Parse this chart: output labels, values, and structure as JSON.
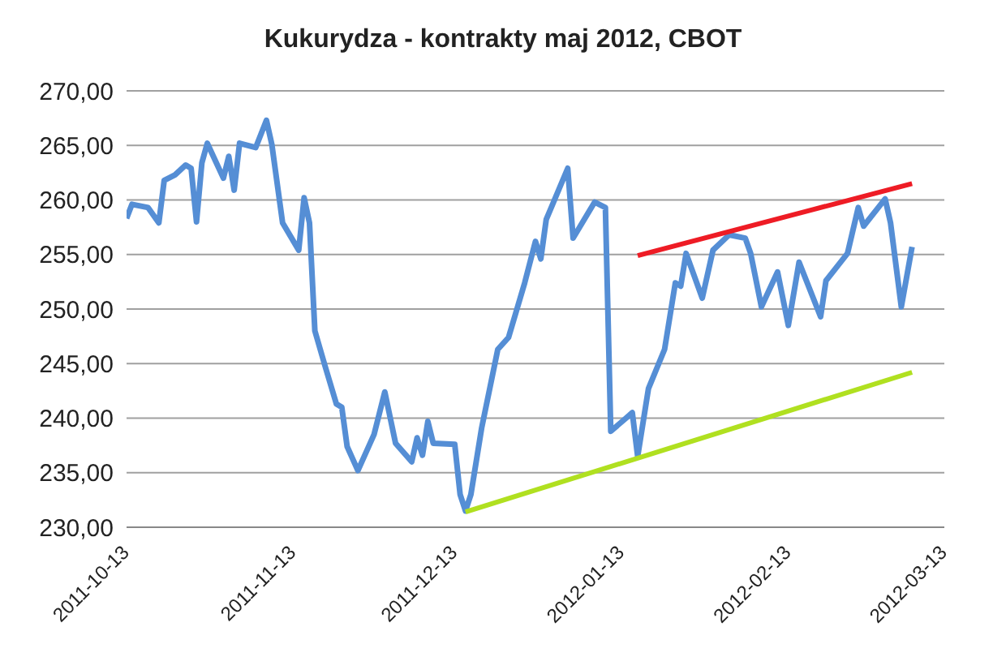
{
  "chart_data": {
    "type": "line",
    "title": "Kukurydza - kontrakty maj 2012, CBOT",
    "x": [
      "2011-10-13",
      "2011-10-14",
      "2011-10-17",
      "2011-10-19",
      "2011-10-20",
      "2011-10-22",
      "2011-10-24",
      "2011-10-25",
      "2011-10-26",
      "2011-10-27",
      "2011-10-28",
      "2011-10-31",
      "2011-11-01",
      "2011-11-02",
      "2011-11-03",
      "2011-11-06",
      "2011-11-08",
      "2011-11-09",
      "2011-11-11",
      "2011-11-14",
      "2011-11-15",
      "2011-11-16",
      "2011-11-17",
      "2011-11-19",
      "2011-11-21",
      "2011-11-22",
      "2011-11-23",
      "2011-11-25",
      "2011-11-28",
      "2011-11-30",
      "2011-12-02",
      "2011-12-05",
      "2011-12-06",
      "2011-12-07",
      "2011-12-08",
      "2011-12-09",
      "2011-12-13",
      "2011-12-14",
      "2011-12-15",
      "2011-12-16",
      "2011-12-18",
      "2011-12-21",
      "2011-12-23",
      "2011-12-26",
      "2011-12-28",
      "2011-12-29",
      "2011-12-30",
      "2012-01-03",
      "2012-01-04",
      "2012-01-08",
      "2012-01-10",
      "2012-01-11",
      "2012-01-15",
      "2012-01-16",
      "2012-01-18",
      "2012-01-21",
      "2012-01-23",
      "2012-01-24",
      "2012-01-25",
      "2012-01-28",
      "2012-01-30",
      "2012-02-02",
      "2012-02-05",
      "2012-02-06",
      "2012-02-08",
      "2012-02-11",
      "2012-02-13",
      "2012-02-15",
      "2012-02-19",
      "2012-02-20",
      "2012-02-24",
      "2012-02-26",
      "2012-02-27",
      "2012-03-02",
      "2012-03-03",
      "2012-03-05",
      "2012-03-07"
    ],
    "series": [
      {
        "color": "#558ed5",
        "values": [
          258.3,
          259.6,
          259.3,
          257.9,
          261.8,
          262.3,
          263.2,
          262.9,
          258.0,
          263.4,
          265.2,
          262.0,
          264.0,
          260.9,
          265.2,
          264.8,
          267.3,
          265.1,
          257.9,
          255.4,
          260.2,
          257.9,
          248.0,
          244.6,
          241.3,
          241.0,
          237.4,
          235.2,
          238.5,
          242.4,
          237.7,
          236.0,
          238.2,
          236.6,
          239.7,
          237.7,
          237.6,
          233.0,
          231.5,
          233.0,
          239.1,
          246.3,
          247.4,
          252.4,
          256.2,
          254.6,
          258.2,
          262.9,
          256.5,
          259.8,
          259.3,
          238.8,
          240.5,
          236.5,
          242.7,
          246.3,
          252.4,
          252.1,
          255.1,
          251.0,
          255.4,
          256.8,
          256.5,
          255.1,
          250.2,
          253.4,
          248.5,
          254.3,
          249.3,
          252.6,
          255.1,
          259.3,
          257.6,
          260.1,
          257.9,
          250.2,
          255.7
        ]
      },
      {
        "type": "line",
        "color": "#ee1c25",
        "x": [
          "2012-01-16",
          "2012-03-07"
        ],
        "values": [
          254.9,
          261.5
        ]
      },
      {
        "type": "line",
        "color": "#b0e020",
        "x": [
          "2011-12-15",
          "2012-03-07"
        ],
        "values": [
          231.4,
          244.2
        ]
      }
    ],
    "xlim": [
      "2011-10-13",
      "2012-03-13"
    ],
    "xticks": [
      "2011-10-13",
      "2011-11-13",
      "2011-12-13",
      "2012-01-13",
      "2012-02-13",
      "2012-03-13"
    ],
    "ylim": [
      230,
      270
    ],
    "yticks": [
      {
        "value": 230,
        "label": "230,00"
      },
      {
        "value": 235,
        "label": "235,00"
      },
      {
        "value": 240,
        "label": "240,00"
      },
      {
        "value": 245,
        "label": "245,00"
      },
      {
        "value": 250,
        "label": "250,00"
      },
      {
        "value": 255,
        "label": "255,00"
      },
      {
        "value": 260,
        "label": "260,00"
      },
      {
        "value": 265,
        "label": "265,00"
      },
      {
        "value": 270,
        "label": "270,00"
      }
    ],
    "grid": "y",
    "marker": "none",
    "line_style": "solid"
  }
}
